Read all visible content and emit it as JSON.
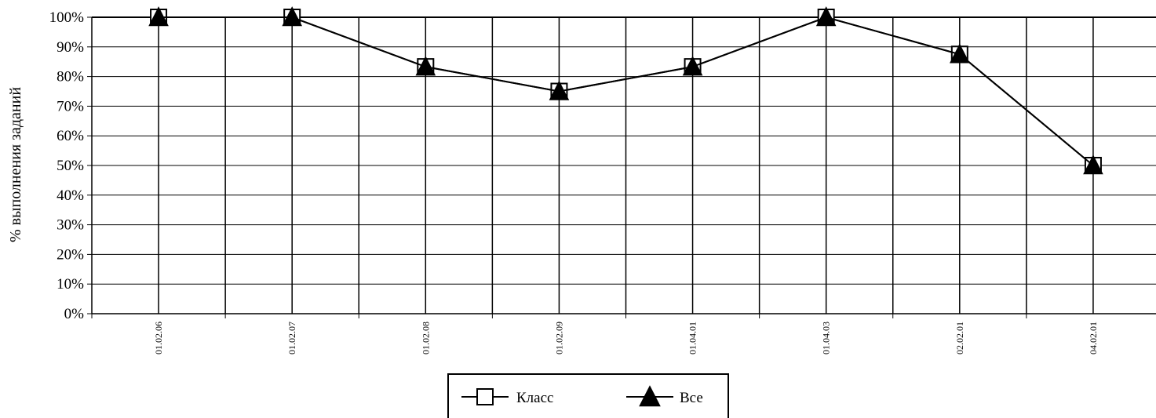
{
  "chart_data": {
    "type": "line",
    "categories": [
      "01.02.06",
      "01.02.07",
      "01.02.08",
      "01.02.09",
      "01.04.01",
      "01.04.03",
      "02.02.01",
      "04.02.01"
    ],
    "series": [
      {
        "name": "Класс",
        "marker": "square",
        "values": [
          100,
          100,
          83.3,
          75,
          83.3,
          100,
          87.5,
          50
        ]
      },
      {
        "name": "Все",
        "marker": "triangle",
        "values": [
          100,
          100,
          83.3,
          75,
          83.3,
          100,
          87.5,
          50
        ]
      }
    ],
    "ylabel": "% выполнения заданий",
    "xlabel": "",
    "ylim": [
      0,
      100
    ],
    "yticks": [
      0,
      10,
      20,
      30,
      40,
      50,
      60,
      70,
      80,
      90,
      100
    ],
    "ytick_suffix": "%",
    "grid": true,
    "legend_position": "bottom",
    "colors": {
      "line": "#000000",
      "grid": "#000000",
      "marker_fill_square": "#ffffff",
      "marker_fill_triangle": "#000000",
      "background": "#ffffff"
    }
  }
}
